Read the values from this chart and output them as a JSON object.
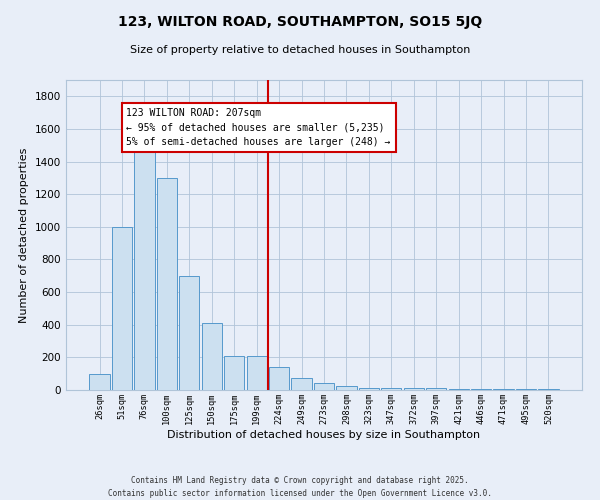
{
  "title": "123, WILTON ROAD, SOUTHAMPTON, SO15 5JQ",
  "subtitle": "Size of property relative to detached houses in Southampton",
  "xlabel": "Distribution of detached houses by size in Southampton",
  "ylabel": "Number of detached properties",
  "bar_labels": [
    "26sqm",
    "51sqm",
    "76sqm",
    "100sqm",
    "125sqm",
    "150sqm",
    "175sqm",
    "199sqm",
    "224sqm",
    "249sqm",
    "273sqm",
    "298sqm",
    "323sqm",
    "347sqm",
    "372sqm",
    "397sqm",
    "421sqm",
    "446sqm",
    "471sqm",
    "495sqm",
    "520sqm"
  ],
  "bar_values": [
    100,
    1000,
    1500,
    1300,
    700,
    410,
    210,
    210,
    140,
    75,
    40,
    25,
    15,
    10,
    10,
    10,
    5,
    5,
    5,
    5,
    5
  ],
  "bar_color": "#cce0f0",
  "bar_edge_color": "#5599cc",
  "vline_x_index": 7.5,
  "vline_color": "#cc0000",
  "annotation_title": "123 WILTON ROAD: 207sqm",
  "annotation_line1": "← 95% of detached houses are smaller (5,235)",
  "annotation_line2": "5% of semi-detached houses are larger (248) →",
  "annotation_box_facecolor": "#ffffff",
  "annotation_box_edgecolor": "#cc0000",
  "ylim": [
    0,
    1900
  ],
  "yticks": [
    0,
    200,
    400,
    600,
    800,
    1000,
    1200,
    1400,
    1600,
    1800
  ],
  "bg_color": "#e8eef8",
  "grid_color": "#b0c4d8",
  "footer_line1": "Contains HM Land Registry data © Crown copyright and database right 2025.",
  "footer_line2": "Contains public sector information licensed under the Open Government Licence v3.0."
}
